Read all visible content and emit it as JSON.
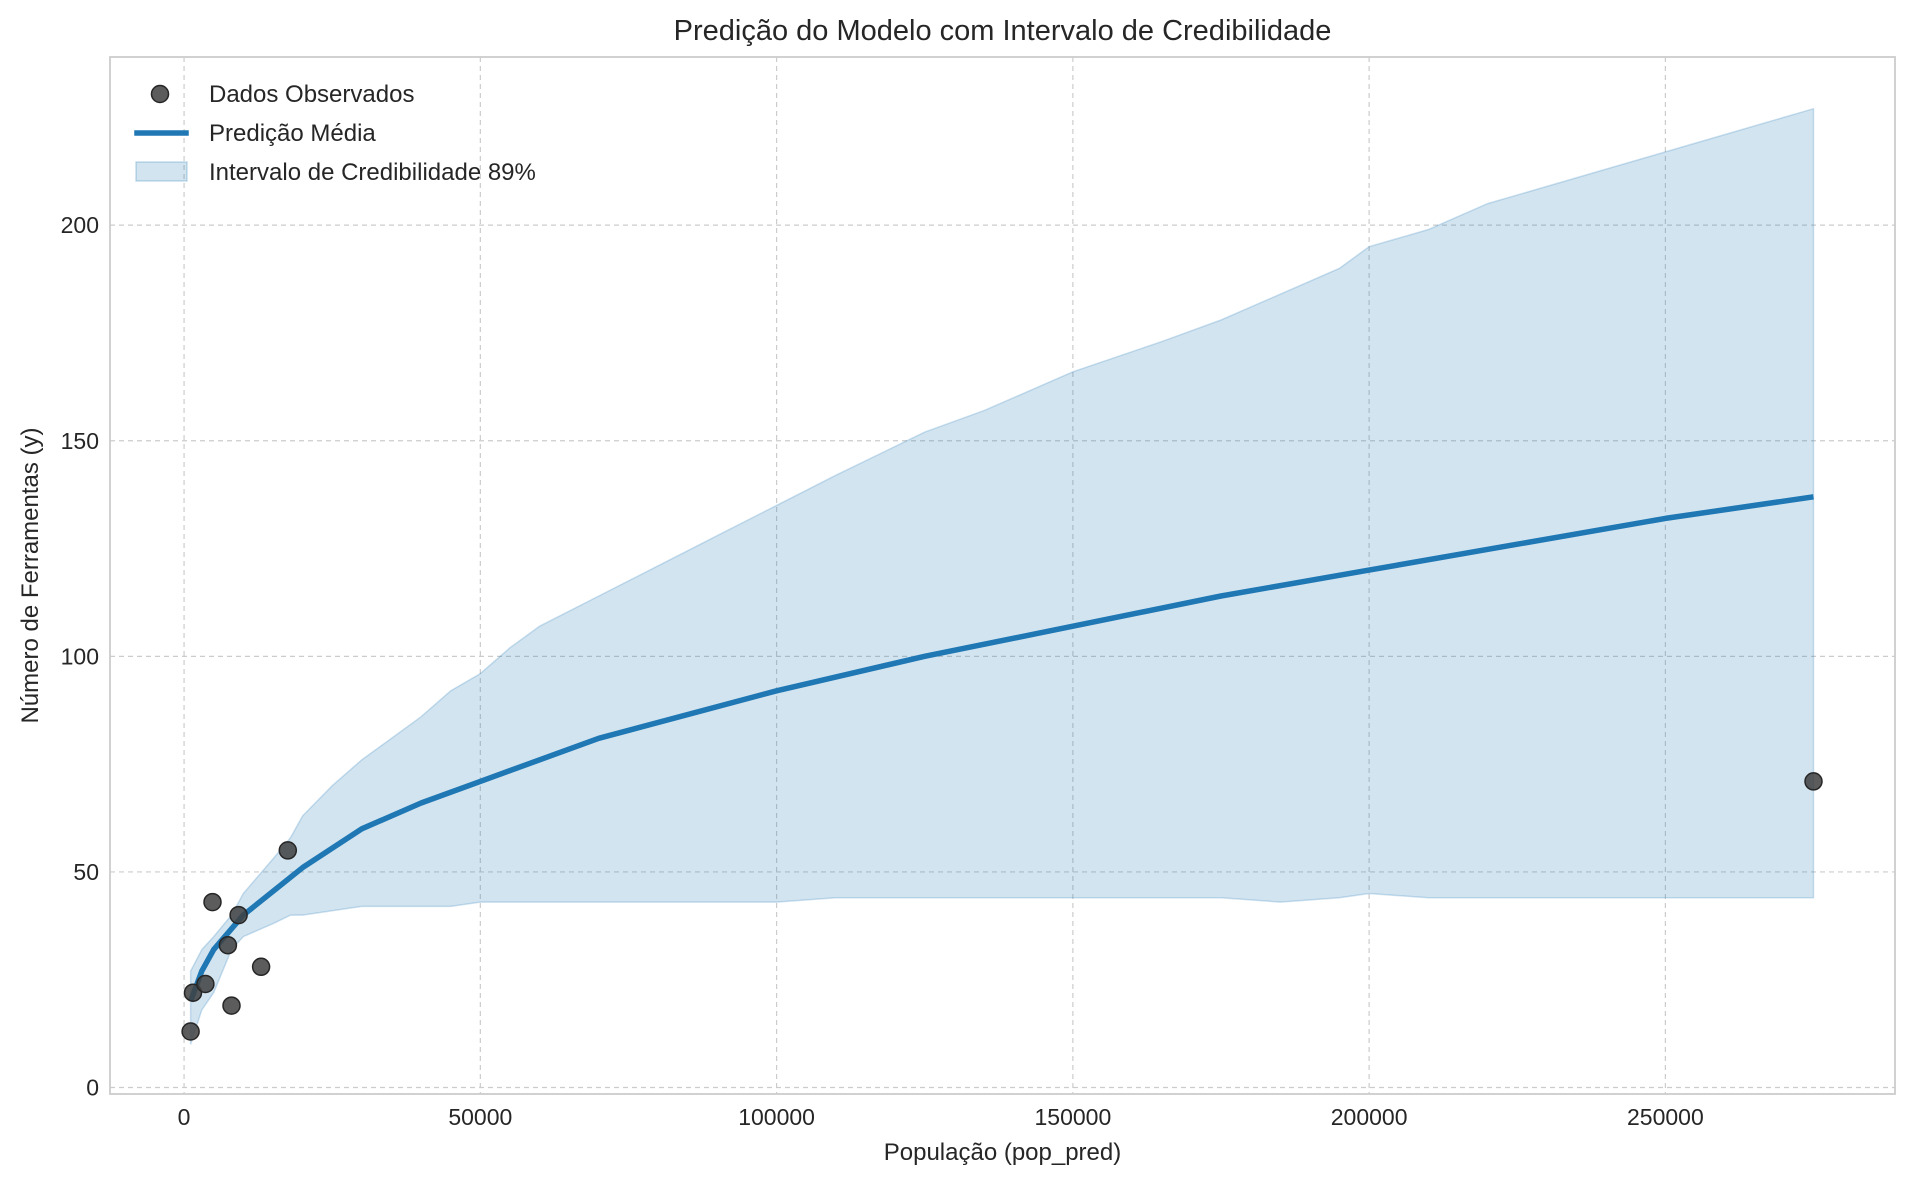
{
  "chart_data": {
    "type": "line",
    "title": "Predição do Modelo com Intervalo de Credibilidade",
    "xlabel": "População (pop_pred)",
    "ylabel": "Número de Ferramentas (y)",
    "xlim": [
      -12500,
      288750
    ],
    "ylim": [
      -1.5,
      239
    ],
    "x_ticks": [
      0,
      50000,
      100000,
      150000,
      200000,
      250000
    ],
    "x_tick_labels": [
      "0",
      "50000",
      "100000",
      "150000",
      "200000",
      "250000"
    ],
    "y_ticks": [
      0,
      50,
      100,
      150,
      200
    ],
    "y_tick_labels": [
      "0",
      "50",
      "100",
      "150",
      "200"
    ],
    "grid": true,
    "legend_position": "upper-left",
    "legend": {
      "observed": "Dados Observados",
      "mean": "Predição Média",
      "interval": "Intervalo de Credibilidade 89%"
    },
    "colors": {
      "mean_line": "#1f77b4",
      "interval_fill": "#1f77b4",
      "observed_points": "#404040",
      "grid": "#cccccc",
      "frame": "#cccccc"
    },
    "observed": {
      "x": [
        1100,
        1500,
        3600,
        4791,
        7400,
        8000,
        9200,
        13000,
        17500,
        275000
      ],
      "y": [
        13,
        22,
        24,
        43,
        33,
        19,
        40,
        28,
        55,
        71
      ]
    },
    "mean_prediction": {
      "x": [
        1100,
        3000,
        5000,
        10000,
        20000,
        30000,
        40000,
        50000,
        70000,
        100000,
        125000,
        150000,
        175000,
        200000,
        225000,
        250000,
        275000
      ],
      "y": [
        20,
        27,
        32,
        40,
        51,
        60,
        66,
        71,
        81,
        92,
        100,
        107,
        114,
        120,
        126,
        132,
        137
      ]
    },
    "credibility_interval": {
      "x": [
        1100,
        3000,
        5000,
        8000,
        10000,
        15000,
        18000,
        20000,
        25000,
        30000,
        35000,
        40000,
        45000,
        50000,
        55000,
        60000,
        70000,
        80000,
        90000,
        100000,
        110000,
        125000,
        135000,
        150000,
        165000,
        175000,
        185000,
        195000,
        200000,
        210000,
        220000,
        230000,
        240000,
        250000,
        260000,
        275000
      ],
      "lower": [
        10,
        18,
        22,
        32,
        35,
        38,
        40,
        40,
        41,
        42,
        42,
        42,
        42,
        43,
        43,
        43,
        43,
        43,
        43,
        43,
        44,
        44,
        44,
        44,
        44,
        44,
        43,
        44,
        45,
        44,
        44,
        44,
        44,
        44,
        44,
        44
      ],
      "upper": [
        27,
        32,
        35,
        40,
        45,
        53,
        58,
        63,
        70,
        76,
        81,
        86,
        92,
        96,
        102,
        107,
        114,
        121,
        128,
        135,
        142,
        152,
        157,
        166,
        173,
        178,
        184,
        190,
        195,
        199,
        205,
        209,
        213,
        217,
        221,
        227
      ]
    }
  }
}
